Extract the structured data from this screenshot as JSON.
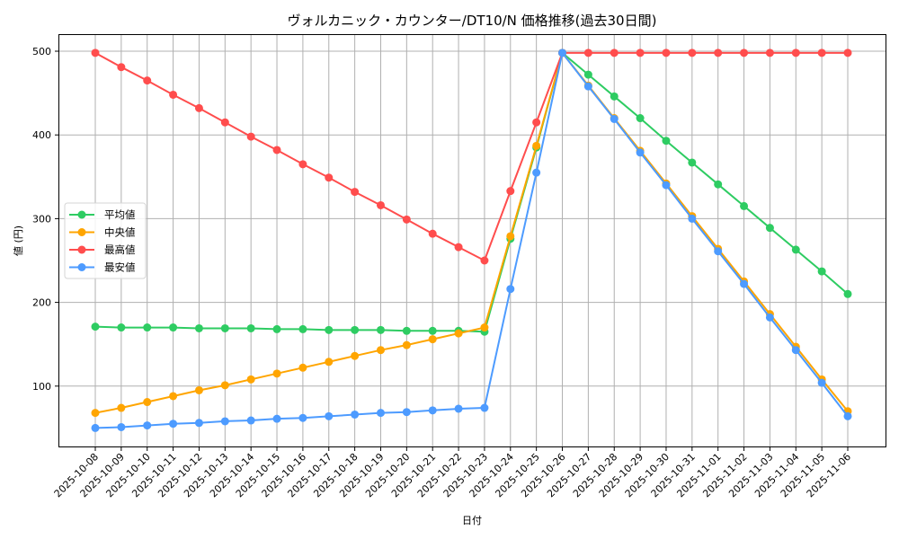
{
  "chart_data": {
    "type": "line",
    "title": "ヴォルカニック・カウンター/DT10/N 価格推移(過去30日間)",
    "xlabel": "日付",
    "ylabel": "値 (円)",
    "ylim": [
      28,
      520
    ],
    "yticks": [
      100,
      200,
      300,
      400,
      500
    ],
    "grid": true,
    "legend_position": "center left",
    "categories": [
      "2025-10-08",
      "2025-10-09",
      "2025-10-10",
      "2025-10-11",
      "2025-10-12",
      "2025-10-13",
      "2025-10-14",
      "2025-10-15",
      "2025-10-16",
      "2025-10-17",
      "2025-10-18",
      "2025-10-19",
      "2025-10-20",
      "2025-10-21",
      "2025-10-22",
      "2025-10-23",
      "2025-10-24",
      "2025-10-25",
      "2025-10-26",
      "2025-10-27",
      "2025-10-28",
      "2025-10-29",
      "2025-10-30",
      "2025-10-31",
      "2025-11-01",
      "2025-11-02",
      "2025-11-03",
      "2025-11-04",
      "2025-11-05",
      "2025-11-06"
    ],
    "series": [
      {
        "name": "平均値",
        "color": "#2ecc62",
        "values": [
          171,
          170,
          170,
          170,
          169,
          169,
          169,
          168,
          168,
          167,
          167,
          167,
          166,
          166,
          166,
          165,
          276,
          385,
          498,
          472,
          446,
          420,
          393,
          367,
          341,
          315,
          289,
          263,
          237,
          210
        ]
      },
      {
        "name": "中央値",
        "color": "#ffa500",
        "values": [
          68,
          74,
          81,
          88,
          95,
          101,
          108,
          115,
          122,
          129,
          136,
          143,
          149,
          156,
          163,
          170,
          279,
          387,
          498,
          459,
          420,
          381,
          342,
          303,
          264,
          225,
          186,
          147,
          108,
          70
        ]
      },
      {
        "name": "最高値",
        "color": "#ff4d4d",
        "values": [
          498,
          481,
          465,
          448,
          432,
          415,
          398,
          382,
          365,
          349,
          332,
          316,
          299,
          282,
          266,
          250,
          333,
          415,
          498,
          498,
          498,
          498,
          498,
          498,
          498,
          498,
          498,
          498,
          498,
          498
        ]
      },
      {
        "name": "最安値",
        "color": "#4d9bff",
        "values": [
          50,
          51,
          53,
          55,
          56,
          58,
          59,
          61,
          62,
          64,
          66,
          68,
          69,
          71,
          73,
          74,
          216,
          355,
          498,
          458,
          419,
          379,
          340,
          300,
          261,
          222,
          182,
          143,
          104,
          64
        ]
      }
    ]
  }
}
